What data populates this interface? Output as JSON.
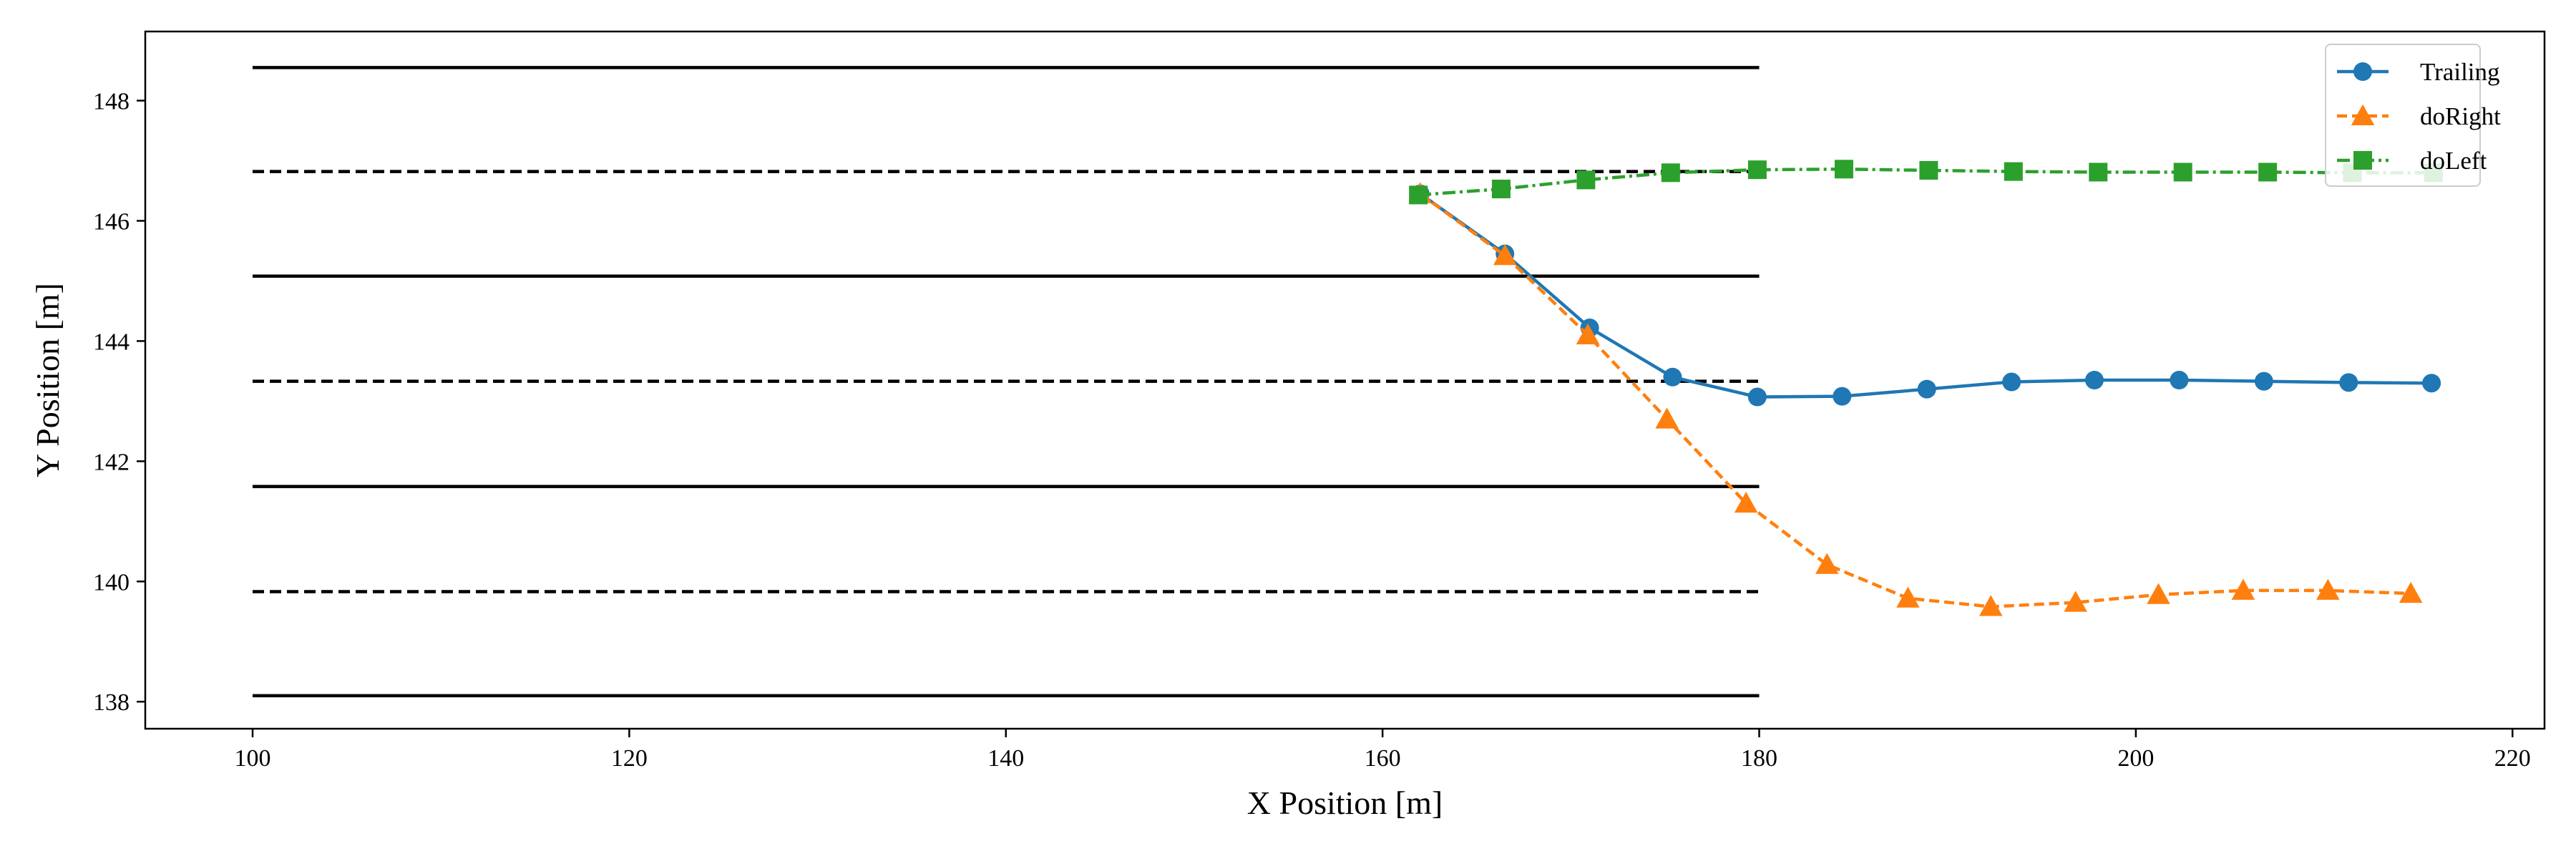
{
  "chart_data": {
    "type": "line",
    "title": "",
    "xlabel": "X Position [m]",
    "ylabel": "Y Position [m]",
    "xlim": [
      94.3,
      221.7
    ],
    "ylim": [
      137.55,
      149.15
    ],
    "x_ticks": [
      100,
      120,
      140,
      160,
      180,
      200,
      220
    ],
    "y_ticks": [
      138,
      140,
      142,
      144,
      146,
      148
    ],
    "grid": false,
    "legend_position": "top-right",
    "lane_lines": [
      {
        "y": 148.55,
        "style": "solid",
        "x": [
          100,
          180
        ]
      },
      {
        "y": 146.82,
        "style": "dashed",
        "x": [
          100,
          180
        ]
      },
      {
        "y": 145.08,
        "style": "solid",
        "x": [
          100,
          180
        ]
      },
      {
        "y": 143.33,
        "style": "dashed",
        "x": [
          100,
          180
        ]
      },
      {
        "y": 141.58,
        "style": "solid",
        "x": [
          100,
          180
        ]
      },
      {
        "y": 139.83,
        "style": "dashed",
        "x": [
          100,
          180
        ]
      },
      {
        "y": 138.1,
        "style": "solid",
        "x": [
          100,
          180
        ]
      }
    ],
    "series": [
      {
        "name": "Trailing",
        "color": "#1f77b4",
        "marker": "circle",
        "line_style": "solid",
        "x": [
          162.0,
          166.5,
          171.0,
          175.4,
          179.9,
          184.4,
          188.9,
          193.4,
          197.8,
          202.3,
          206.8,
          211.3,
          215.7
        ],
        "y": [
          146.45,
          145.45,
          144.22,
          143.4,
          143.07,
          143.08,
          143.2,
          143.32,
          143.35,
          143.35,
          143.33,
          143.31,
          143.3
        ]
      },
      {
        "name": "doRight",
        "color": "#ff7f0e",
        "marker": "triangle",
        "line_style": "dashed",
        "x": [
          162.0,
          166.5,
          170.9,
          175.1,
          179.3,
          183.6,
          187.9,
          192.3,
          196.8,
          201.2,
          205.7,
          210.2,
          214.6
        ],
        "y": [
          146.45,
          145.42,
          144.1,
          142.7,
          141.3,
          140.28,
          139.72,
          139.58,
          139.65,
          139.78,
          139.85,
          139.85,
          139.8
        ]
      },
      {
        "name": "doLeft",
        "color": "#2ca02c",
        "marker": "square",
        "line_style": "dashdot",
        "x": [
          161.9,
          166.3,
          170.8,
          175.3,
          179.9,
          184.5,
          189.0,
          193.5,
          198.0,
          202.5,
          207.0,
          211.5,
          215.8
        ],
        "y": [
          146.43,
          146.53,
          146.68,
          146.8,
          146.85,
          146.86,
          146.84,
          146.82,
          146.81,
          146.81,
          146.81,
          146.8,
          146.8
        ]
      }
    ]
  }
}
